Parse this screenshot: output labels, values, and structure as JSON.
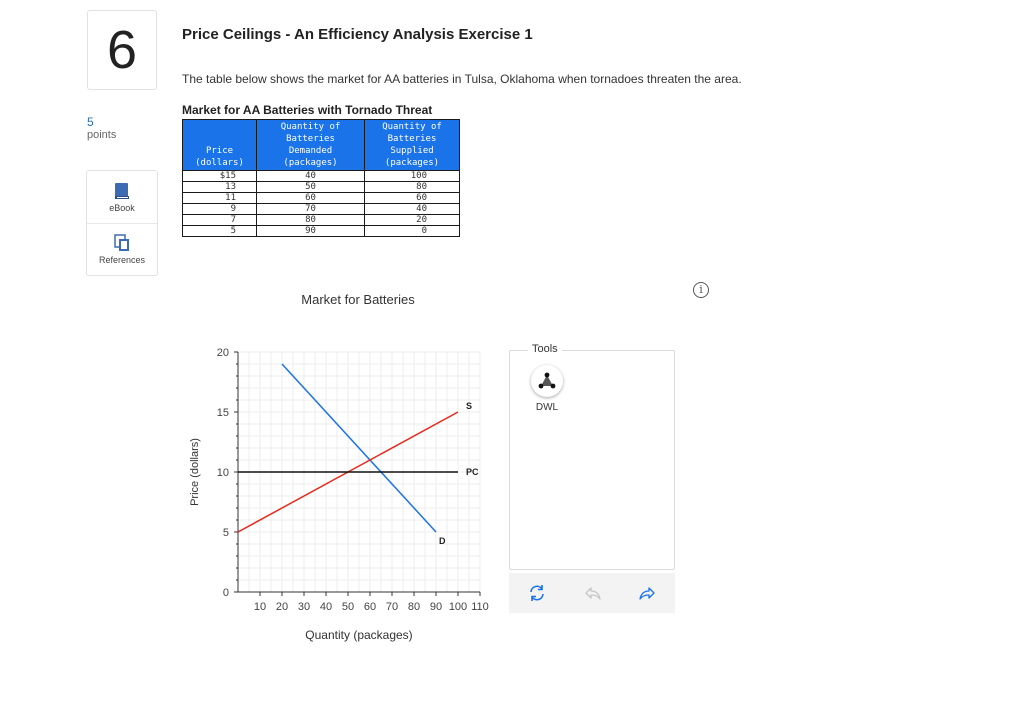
{
  "question": {
    "number": "6",
    "points_value": "5",
    "points_label": "points",
    "title": "Price Ceilings - An Efficiency Analysis Exercise 1",
    "intro": "The table below shows the market for AA batteries in Tulsa, Oklahoma when tornadoes threaten the area."
  },
  "sidebar": {
    "ebook_label": "eBook",
    "references_label": "References"
  },
  "table": {
    "title": "Market for AA Batteries with Tornado Threat",
    "headers": {
      "price": [
        "Price",
        "(dollars)"
      ],
      "demanded": [
        "Quantity of",
        "Batteries",
        "Demanded",
        "(packages)"
      ],
      "supplied": [
        "Quantity of",
        "Batteries",
        "Supplied",
        "(packages)"
      ]
    },
    "rows": [
      {
        "price": "$15",
        "demanded": "40",
        "supplied": "100"
      },
      {
        "price": "13",
        "demanded": "50",
        "supplied": "80"
      },
      {
        "price": "11",
        "demanded": "60",
        "supplied": "60"
      },
      {
        "price": "9",
        "demanded": "70",
        "supplied": "40"
      },
      {
        "price": "7",
        "demanded": "80",
        "supplied": "20"
      },
      {
        "price": "5",
        "demanded": "90",
        "supplied": "0"
      }
    ]
  },
  "info_icon": "info-icon",
  "tools": {
    "title": "Tools",
    "dwl_label": "DWL"
  },
  "colors": {
    "demand": "#1a73e8",
    "supply": "#e8291c",
    "price_ceiling": "#111111",
    "table_header": "#1a73e8"
  },
  "chart_data": {
    "type": "line",
    "title": "Market for Batteries",
    "xlabel": "Quantity (packages)",
    "ylabel": "Price (dollars)",
    "xlim": [
      0,
      110
    ],
    "ylim": [
      0,
      20
    ],
    "x_ticks": [
      "10",
      "20",
      "30",
      "40",
      "50",
      "60",
      "70",
      "80",
      "90",
      "100",
      "110"
    ],
    "y_ticks": [
      "0",
      "5",
      "10",
      "15",
      "20"
    ],
    "grid": true,
    "series": [
      {
        "name": "D",
        "color": "#1a73e8",
        "points": [
          [
            20,
            19
          ],
          [
            90,
            5
          ]
        ]
      },
      {
        "name": "S",
        "color": "#e8291c",
        "points": [
          [
            0,
            5
          ],
          [
            100,
            15
          ]
        ]
      },
      {
        "name": "PC",
        "color": "#111111",
        "points": [
          [
            0,
            10
          ],
          [
            100,
            10
          ]
        ]
      }
    ]
  }
}
